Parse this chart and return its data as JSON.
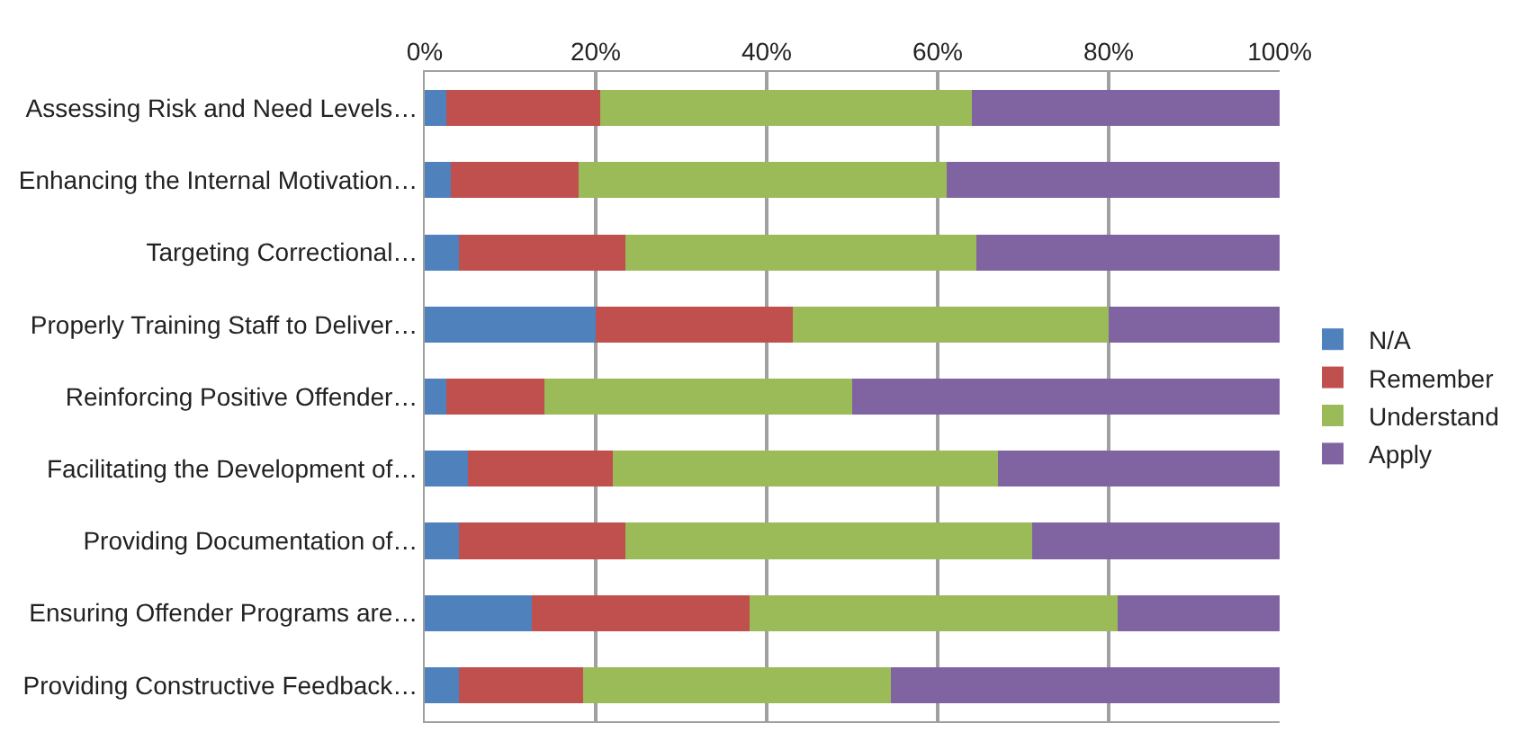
{
  "chart_data": {
    "type": "bar",
    "orientation": "horizontal",
    "stacked": true,
    "grid": "x",
    "legend": "right",
    "categories": [
      "Assessing Risk and Need Levels…",
      "Enhancing the Internal Motivation…",
      "Targeting Correctional…",
      "Properly Training Staff to Deliver…",
      "Reinforcing Positive Offender…",
      "Facilitating the Development of…",
      "Providing Documentation of…",
      "Ensuring Offender Programs are…",
      "Providing Constructive Feedback…"
    ],
    "xlim": [
      0,
      100
    ],
    "xticks": [
      {
        "value": 0,
        "label": "0%"
      },
      {
        "value": 20,
        "label": "20%"
      },
      {
        "value": 40,
        "label": "40%"
      },
      {
        "value": 60,
        "label": "60%"
      },
      {
        "value": 80,
        "label": "80%"
      },
      {
        "value": 100,
        "label": "100%"
      }
    ],
    "series": [
      {
        "name": "N/A",
        "color": "#4f81bd",
        "values": [
          2.5,
          3,
          4,
          20,
          2.5,
          5,
          4,
          12.5,
          4
        ]
      },
      {
        "name": "Remember",
        "color": "#c0504d",
        "values": [
          18,
          15,
          19.5,
          23,
          11.5,
          17,
          19.5,
          25.5,
          14.5
        ]
      },
      {
        "name": "Understand",
        "color": "#9bbb59",
        "values": [
          43.5,
          43,
          41,
          37,
          36,
          45,
          47.5,
          43,
          36
        ]
      },
      {
        "name": "Apply",
        "color": "#8064a2",
        "values": [
          36,
          39,
          35.5,
          20,
          50,
          33,
          29,
          19,
          45.5
        ]
      }
    ]
  }
}
